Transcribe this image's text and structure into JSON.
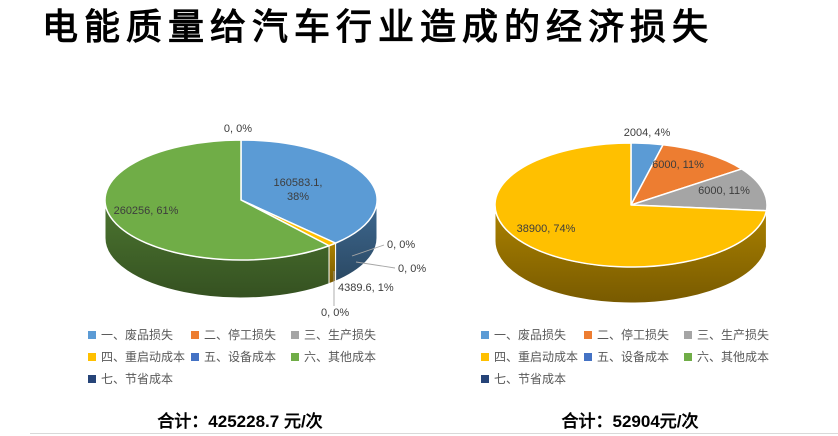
{
  "page": {
    "title": "电能质量给汽车行业造成的经济损失",
    "background": "#ffffff",
    "divider_color": "#d9d9d9"
  },
  "legend": {
    "position": "bottom",
    "text_color": "#595959",
    "items": [
      {
        "label": "一、废品损失",
        "color": "#5B9BD5"
      },
      {
        "label": "二、停工损失",
        "color": "#ED7D31"
      },
      {
        "label": "三、生产损失",
        "color": "#A5A5A5"
      },
      {
        "label": "四、重启动成本",
        "color": "#FFC000"
      },
      {
        "label": "五、设备成本",
        "color": "#4472C4"
      },
      {
        "label": "六、其他成本",
        "color": "#70AD47"
      },
      {
        "label": "七、节省成本",
        "color": "#264478"
      }
    ]
  },
  "chart_data": [
    {
      "type": "pie",
      "style": "3d",
      "title": "",
      "unit": "元/次",
      "categories": [
        "一、废品损失",
        "二、停工损失",
        "三、生产损失",
        "四、重启动成本",
        "五、设备成本",
        "六、其他成本",
        "七、节省成本"
      ],
      "values": [
        160583.1,
        0,
        0,
        4389.6,
        0,
        260256,
        0
      ],
      "percent_labels": [
        "38%",
        "0%",
        "0%",
        "1%",
        "0%",
        "61%",
        "0%"
      ],
      "colors": [
        "#5B9BD5",
        "#ED7D31",
        "#A5A5A5",
        "#FFC000",
        "#4472C4",
        "#70AD47",
        "#264478"
      ],
      "slice_labels": [
        [
          "160583.1,",
          "38%"
        ],
        [
          "0, 0%"
        ],
        [
          "0, 0%"
        ],
        [
          "4389.6, 1%"
        ],
        [
          "0, 0%"
        ],
        [
          "260256, 61%"
        ],
        [
          "0, 0%"
        ]
      ],
      "total": 425228.7,
      "total_label": "合计：425228.7 元/次",
      "start_angle_deg": 0,
      "direction": "clockwise",
      "legend_position": "bottom"
    },
    {
      "type": "pie",
      "style": "3d",
      "title": "",
      "unit": "元/次",
      "categories": [
        "一、废品损失",
        "二、停工损失",
        "三、生产损失",
        "四、重启动成本",
        "五、设备成本",
        "六、其他成本",
        "七、节省成本"
      ],
      "values": [
        2004,
        6000,
        6000,
        38900,
        0,
        0,
        0
      ],
      "percent_labels": [
        "4%",
        "11%",
        "11%",
        "74%",
        "0%",
        "0%",
        "0%"
      ],
      "colors": [
        "#5B9BD5",
        "#ED7D31",
        "#A5A5A5",
        "#FFC000",
        "#4472C4",
        "#70AD47",
        "#264478"
      ],
      "slice_labels": [
        [
          "2004, 4%"
        ],
        [
          "6000, 11%"
        ],
        [
          "6000, 11%"
        ],
        [
          "38900, 74%"
        ],
        null,
        null,
        null
      ],
      "total": 52904,
      "total_label": "合计：52904元/次",
      "start_angle_deg": 0,
      "direction": "clockwise",
      "legend_position": "bottom"
    }
  ]
}
